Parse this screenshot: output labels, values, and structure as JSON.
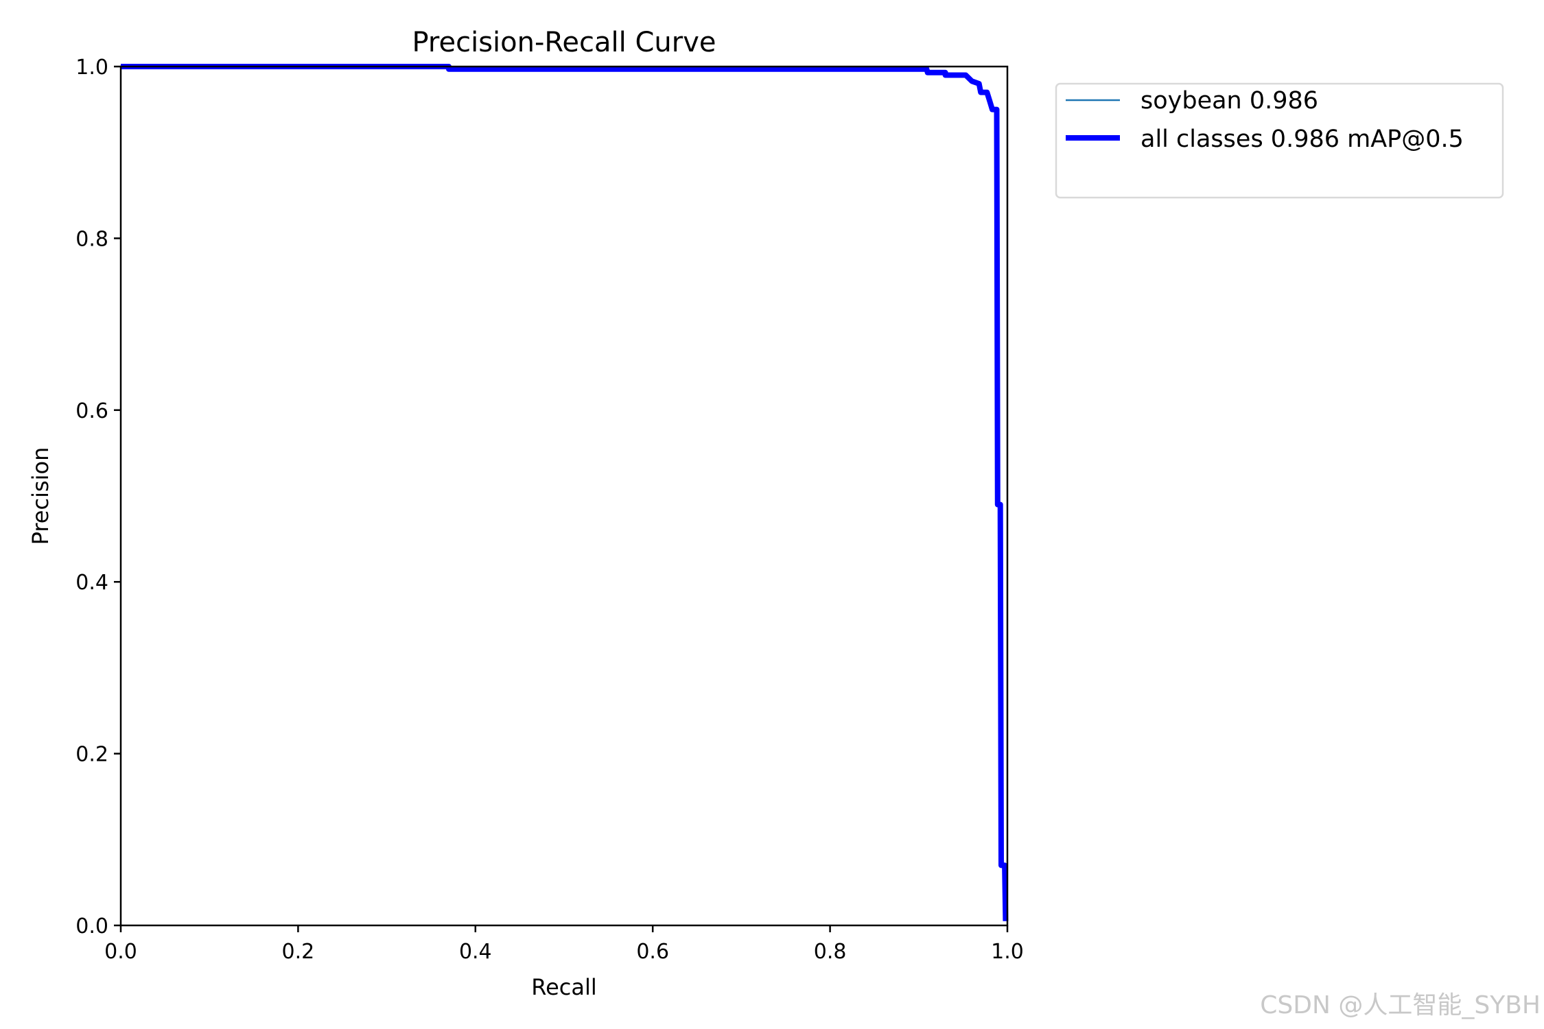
{
  "chart_data": {
    "type": "line",
    "title": "Precision-Recall Curve",
    "xlabel": "Recall",
    "ylabel": "Precision",
    "xlim": [
      0,
      1
    ],
    "ylim": [
      0,
      1
    ],
    "xticks": [
      "0.0",
      "0.2",
      "0.4",
      "0.6",
      "0.8",
      "1.0"
    ],
    "yticks": [
      "0.0",
      "0.2",
      "0.4",
      "0.6",
      "0.8",
      "1.0"
    ],
    "grid": false,
    "legend_placement": "outside-top-right",
    "series": [
      {
        "name": "soybean 0.986",
        "color": "#1f77b4",
        "style": "thin",
        "points": [
          [
            0,
            1
          ],
          [
            0.37,
            1
          ],
          [
            0.37,
            0.997
          ],
          [
            0.909,
            0.997
          ],
          [
            0.91,
            0.993
          ],
          [
            0.93,
            0.993
          ],
          [
            0.93,
            0.99
          ],
          [
            0.953,
            0.99
          ],
          [
            0.96,
            0.983
          ],
          [
            0.968,
            0.98
          ],
          [
            0.97,
            0.97
          ],
          [
            0.977,
            0.97
          ],
          [
            0.98,
            0.96
          ],
          [
            0.983,
            0.95
          ],
          [
            0.988,
            0.95
          ],
          [
            0.989,
            0.49
          ],
          [
            0.992,
            0.49
          ],
          [
            0.993,
            0.07
          ],
          [
            0.997,
            0.07
          ],
          [
            0.998,
            0.005
          ]
        ]
      },
      {
        "name": "all classes 0.986 mAP@0.5",
        "color": "#0000ff",
        "style": "thick",
        "points": [
          [
            0,
            1
          ],
          [
            0.37,
            1
          ],
          [
            0.37,
            0.997
          ],
          [
            0.909,
            0.997
          ],
          [
            0.91,
            0.993
          ],
          [
            0.93,
            0.993
          ],
          [
            0.93,
            0.99
          ],
          [
            0.953,
            0.99
          ],
          [
            0.96,
            0.983
          ],
          [
            0.968,
            0.98
          ],
          [
            0.97,
            0.97
          ],
          [
            0.977,
            0.97
          ],
          [
            0.98,
            0.96
          ],
          [
            0.983,
            0.95
          ],
          [
            0.988,
            0.95
          ],
          [
            0.989,
            0.49
          ],
          [
            0.992,
            0.49
          ],
          [
            0.993,
            0.07
          ],
          [
            0.997,
            0.07
          ],
          [
            0.998,
            0.005
          ]
        ]
      }
    ]
  },
  "watermark": "CSDN @人工智能_SYBH"
}
